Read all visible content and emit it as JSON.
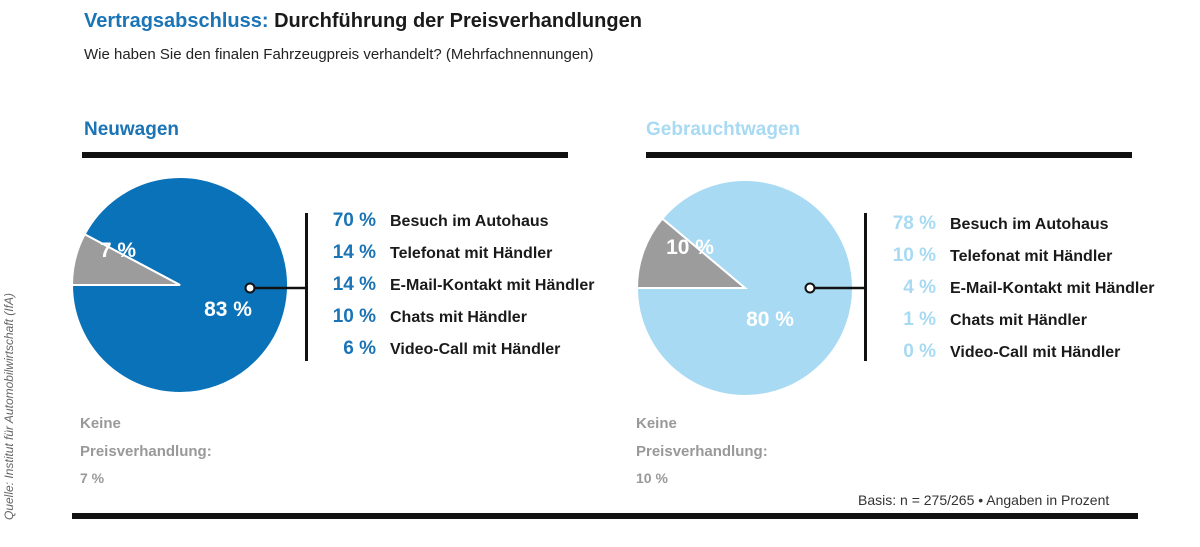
{
  "header": {
    "title_prefix": "Vertragsabschluss:",
    "title_rest": " Durchführung der Preisverhandlungen",
    "subtitle": "Wie haben Sie den finalen Fahrzeugpreis verhandelt? (Mehrfachnennungen)"
  },
  "source": "Quelle: Institut für Automobilwirtschaft (IfA)",
  "footer": {
    "basis": "Basis: n = 275/265  • Angaben in Prozent"
  },
  "colors": {
    "accent_dark": "#0a72b9",
    "accent_light": "#a8daf3",
    "gray": "#9c9c9c",
    "muted_text": "#999999"
  },
  "chart_data": [
    {
      "type": "pie",
      "title": "Neuwagen",
      "slices": [
        {
          "label": "83 %",
          "value": 83
        },
        {
          "label": "7 %",
          "value": 7
        }
      ],
      "breakdown": [
        {
          "pct": "70 %",
          "label": "Besuch im Autohaus",
          "value": 70
        },
        {
          "pct": "14 %",
          "label": "Telefonat mit Händler",
          "value": 14
        },
        {
          "pct": "14 %",
          "label": "E-Mail-Kontakt mit Händler",
          "value": 14
        },
        {
          "pct": "10 %",
          "label": "Chats mit Händler",
          "value": 10
        },
        {
          "pct": "6 %",
          "label": "Video-Call mit Händler",
          "value": 6
        }
      ],
      "no_negotiation": {
        "line1": "Keine",
        "line2": "Preisverhandlung:",
        "value_label": "7 %",
        "value": 7
      }
    },
    {
      "type": "pie",
      "title": "Gebrauchtwagen",
      "slices": [
        {
          "label": "80 %",
          "value": 80
        },
        {
          "label": "10 %",
          "value": 10
        }
      ],
      "breakdown": [
        {
          "pct": "78 %",
          "label": "Besuch im Autohaus",
          "value": 78
        },
        {
          "pct": "10 %",
          "label": "Telefonat mit Händler",
          "value": 10
        },
        {
          "pct": "4 %",
          "label": "E-Mail-Kontakt mit Händler",
          "value": 4
        },
        {
          "pct": "1 %",
          "label": "Chats mit Händler",
          "value": 1
        },
        {
          "pct": "0 %",
          "label": "Video-Call mit Händler",
          "value": 0
        }
      ],
      "no_negotiation": {
        "line1": "Keine",
        "line2": "Preisverhandlung:",
        "value_label": "10 %",
        "value": 10
      }
    }
  ]
}
